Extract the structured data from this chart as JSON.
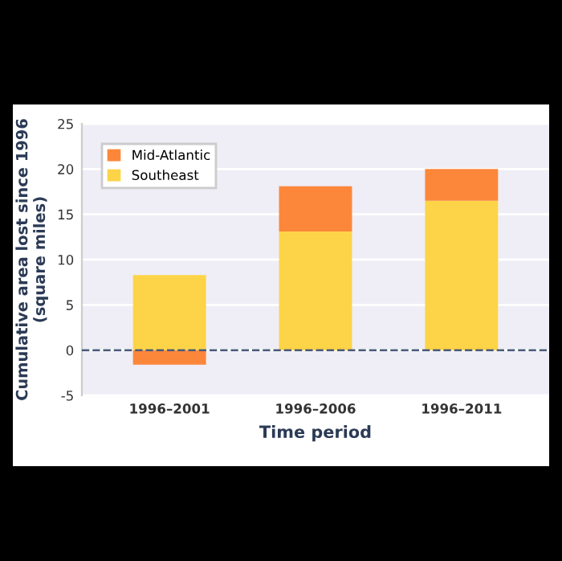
{
  "chart_data": {
    "type": "bar",
    "stacked": true,
    "xlabel": "Time period",
    "ylabel": "Cumulative area lost since 1996\n(square miles)",
    "categories": [
      "1996–2001",
      "1996–2006",
      "1996–2011"
    ],
    "series": [
      {
        "name": "Southeast",
        "color": "#fdd447",
        "values": [
          8.3,
          13.1,
          16.5
        ]
      },
      {
        "name": "Mid-Atlantic",
        "color": "#fc873b",
        "values": [
          -1.6,
          5.0,
          3.5
        ]
      }
    ],
    "ylim": [
      -5,
      25
    ],
    "yticks": [
      -5,
      0,
      5,
      10,
      15,
      20,
      25
    ],
    "ref_lines": [
      {
        "axis": "y",
        "value": 0,
        "color": "#4a5a78",
        "line_style": "dashed"
      }
    ],
    "grid": "y",
    "legend": "top left"
  }
}
